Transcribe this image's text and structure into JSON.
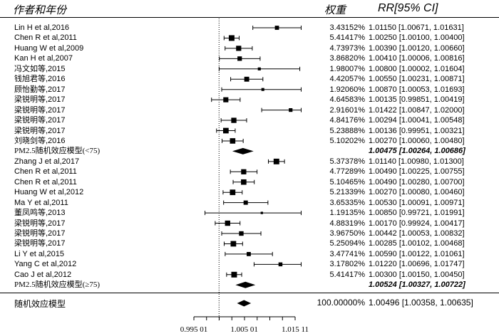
{
  "header": {
    "study_label": "作者和年份",
    "weight_label": "权重",
    "rr_label": "RR[95% CI]"
  },
  "chart_data": {
    "type": "forest",
    "x_axis": {
      "null_value": 1.0,
      "range": [
        0.99501,
        1.01511
      ],
      "ticks": [
        0.99501,
        1.00501,
        1.01511
      ],
      "tick_labels": [
        "0.995 01",
        "1.005 01",
        "1.015 11"
      ]
    },
    "rows": [
      {
        "study": "Lin H et al,2016",
        "weight": "3.43152%",
        "rr": 1.0115,
        "lo": 1.00671,
        "hi": 1.01631,
        "ci_text": "1.01150 [1.00671, 1.01631]"
      },
      {
        "study": "Chen R et al,2011",
        "weight": "5.41417%",
        "rr": 1.0025,
        "lo": 1.001,
        "hi": 1.004,
        "ci_text": "1.00250 [1.00100, 1.00400]"
      },
      {
        "study": "Huang W et al,2009",
        "weight": "4.73973%",
        "rr": 1.0039,
        "lo": 1.0012,
        "hi": 1.0066,
        "ci_text": "1.00390 [1.00120, 1.00660]"
      },
      {
        "study": "Kan H et al,2007",
        "weight": "3.86820%",
        "rr": 1.0041,
        "lo": 1.00006,
        "hi": 1.00816,
        "ci_text": "1.00410 [1.00006, 1.00816]"
      },
      {
        "study": "冯文如等,2015",
        "weight": "1.98007%",
        "rr": 1.008,
        "lo": 1.00002,
        "hi": 1.01604,
        "ci_text": "1.00800 [1.00002, 1.01604]"
      },
      {
        "study": "钱旭君等,2016",
        "weight": "4.42057%",
        "rr": 1.0055,
        "lo": 1.00231,
        "hi": 1.00871,
        "ci_text": "1.00550 [1.00231, 1.00871]"
      },
      {
        "study": "顾怡勤等,2017",
        "weight": "1.92060%",
        "rr": 1.0087,
        "lo": 1.00053,
        "hi": 1.01693,
        "ci_text": "1.00870 [1.00053, 1.01693]"
      },
      {
        "study": "梁锐明等,2017",
        "weight": "4.64583%",
        "rr": 1.00135,
        "lo": 0.99851,
        "hi": 1.00419,
        "ci_text": "1.00135 [0.99851, 1.00419]"
      },
      {
        "study": "梁锐明等,2017",
        "weight": "2.91601%",
        "rr": 1.01422,
        "lo": 1.00847,
        "hi": 1.02,
        "ci_text": "1.01422 [1.00847, 1.02000]"
      },
      {
        "study": "梁锐明等,2017",
        "weight": "4.84176%",
        "rr": 1.00294,
        "lo": 1.00041,
        "hi": 1.00548,
        "ci_text": "1.00294 [1.00041, 1.00548]"
      },
      {
        "study": "梁锐明等,2017",
        "weight": "5.23888%",
        "rr": 1.00136,
        "lo": 0.99951,
        "hi": 1.00321,
        "ci_text": "1.00136 [0.99951, 1.00321]"
      },
      {
        "study": "刘晓剑等,2016",
        "weight": "5.10202%",
        "rr": 1.0027,
        "lo": 1.0006,
        "hi": 1.0048,
        "ci_text": "1.00270 [1.00060, 1.00480]"
      },
      {
        "study": "PM2.5随机效应模型(<75)",
        "summary": true,
        "rr": 1.00475,
        "lo": 1.00264,
        "hi": 1.00686,
        "ci_text": "1.00475 [1.00264, 1.00686]"
      },
      {
        "study": "Zhang J et al,2017",
        "weight": "5.37378%",
        "rr": 1.0114,
        "lo": 1.0098,
        "hi": 1.013,
        "ci_text": "1.01140 [1.00980, 1.01300]"
      },
      {
        "study": "Chen R et al,2011",
        "weight": "4.77289%",
        "rr": 1.0049,
        "lo": 1.00225,
        "hi": 1.00755,
        "ci_text": "1.00490 [1.00225, 1.00755]"
      },
      {
        "study": "Chen R et al,2011",
        "weight": "5.10465%",
        "rr": 1.0049,
        "lo": 1.0028,
        "hi": 1.007,
        "ci_text": "1.00490 [1.00280, 1.00700]"
      },
      {
        "study": "Huang W et al,2012",
        "weight": "5.21339%",
        "rr": 1.0027,
        "lo": 1.0008,
        "hi": 1.0046,
        "ci_text": "1.00270 [1.00080, 1.00460]"
      },
      {
        "study": "Ma Y et al,2011",
        "weight": "3.65335%",
        "rr": 1.0053,
        "lo": 1.00091,
        "hi": 1.00971,
        "ci_text": "1.00530 [1.00091, 1.00971]"
      },
      {
        "study": "董凤鸣等,2013",
        "weight": "1.19135%",
        "rr": 1.0085,
        "lo": 0.99721,
        "hi": 1.01991,
        "ci_text": "1.00850 [0.99721, 1.01991]"
      },
      {
        "study": "梁锐明等,2017",
        "weight": "4.88319%",
        "rr": 1.0017,
        "lo": 0.99924,
        "hi": 1.00417,
        "ci_text": "1.00170 [0.99924, 1.00417]"
      },
      {
        "study": "梁锐明等,2017",
        "weight": "3.96750%",
        "rr": 1.00442,
        "lo": 1.00053,
        "hi": 1.00832,
        "ci_text": "1.00442 [1.00053, 1.00832]"
      },
      {
        "study": "梁锐明等,2017",
        "weight": "5.25094%",
        "rr": 1.00285,
        "lo": 1.00102,
        "hi": 1.00468,
        "ci_text": "1.00285 [1.00102, 1.00468]"
      },
      {
        "study": "Li Y et al,2015",
        "weight": "3.47741%",
        "rr": 1.0059,
        "lo": 1.00122,
        "hi": 1.01061,
        "ci_text": "1.00590 [1.00122, 1.01061]"
      },
      {
        "study": "Yang C et al,2012",
        "weight": "3.17802%",
        "rr": 1.0122,
        "lo": 1.00696,
        "hi": 1.01747,
        "ci_text": "1.01220 [1.00696, 1.01747]"
      },
      {
        "study": "Cao J et al,2012",
        "weight": "5.41417%",
        "rr": 1.003,
        "lo": 1.0015,
        "hi": 1.0045,
        "ci_text": "1.00300 [1.00150, 1.00450]"
      },
      {
        "study": "PM2.5随机效应模型(≥75)",
        "summary": true,
        "rr": 1.00524,
        "lo": 1.00327,
        "hi": 1.00722,
        "ci_text": "1.00524 [1.00327, 1.00722]"
      }
    ],
    "overall": {
      "label": "随机效应模型",
      "weight": "100.00000%",
      "rr": 1.00496,
      "lo": 1.00358,
      "hi": 1.00635,
      "ci_text": "1.00496 [1.00358, 1.00635]"
    }
  }
}
